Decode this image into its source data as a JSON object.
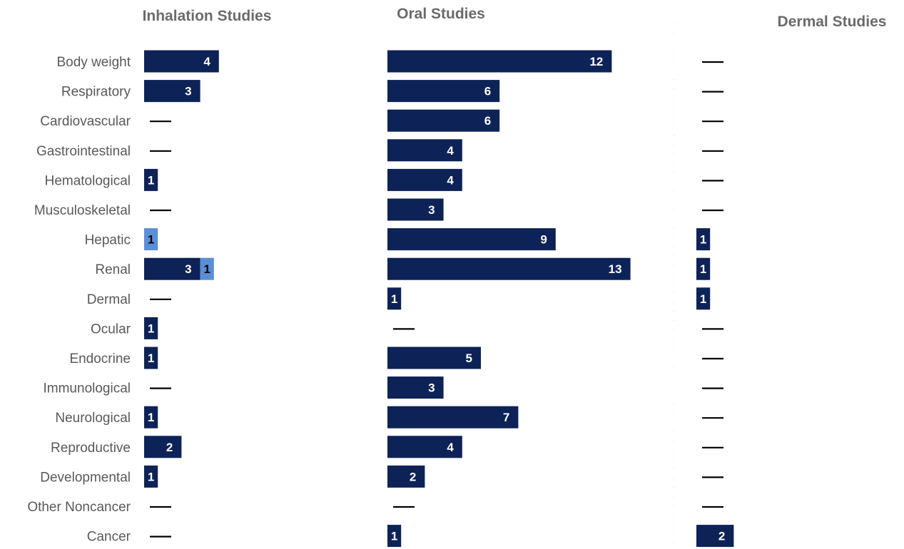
{
  "chart_data": {
    "type": "bar",
    "orientation": "horizontal",
    "categories": [
      "Body weight",
      "Respiratory",
      "Cardiovascular",
      "Gastrointestinal",
      "Hematological",
      "Musculoskeletal",
      "Hepatic",
      "Renal",
      "Dermal",
      "Ocular",
      "Endocrine",
      "Immunological",
      "Neurological",
      "Reproductive",
      "Developmental",
      "Other Noncancer",
      "Cancer"
    ],
    "colors": {
      "dark": "#0d2256",
      "light": "#5b8ed6",
      "dash": "#000000",
      "dark_text": "#ffffff",
      "light_text": "#000000"
    },
    "panels": [
      {
        "title": "Inhalation Studies",
        "series": [
          {
            "color": "dark",
            "values": [
              4,
              3,
              0,
              0,
              1,
              0,
              0,
              3,
              0,
              1,
              1,
              0,
              1,
              2,
              1,
              0,
              0
            ]
          },
          {
            "color": "light",
            "values": [
              0,
              0,
              0,
              0,
              0,
              0,
              1,
              1,
              0,
              0,
              0,
              0,
              0,
              0,
              0,
              0,
              0
            ]
          }
        ]
      },
      {
        "title": "Oral Studies",
        "series": [
          {
            "color": "dark",
            "values": [
              12,
              6,
              6,
              4,
              4,
              3,
              9,
              13,
              1,
              0,
              5,
              3,
              7,
              4,
              2,
              0,
              1
            ]
          }
        ]
      },
      {
        "title": "Dermal Studies",
        "series": [
          {
            "color": "dark",
            "values": [
              0,
              0,
              0,
              0,
              0,
              0,
              1,
              1,
              1,
              0,
              0,
              0,
              0,
              0,
              0,
              0,
              2
            ]
          }
        ]
      }
    ],
    "zero_marker": "—",
    "legend": "none",
    "grid": false
  }
}
